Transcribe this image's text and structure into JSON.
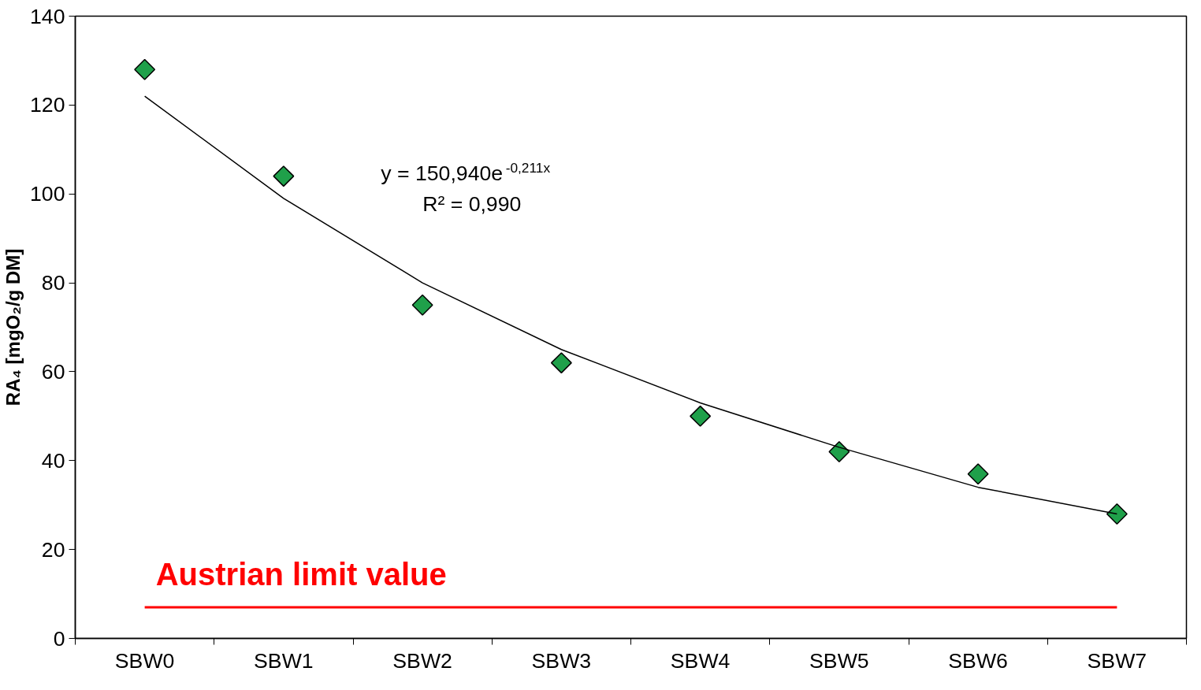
{
  "chart_data": {
    "type": "scatter",
    "ylabel": "RA₄ [mgO₂/g DM]",
    "categories": [
      "SBW0",
      "SBW1",
      "SBW2",
      "SBW3",
      "SBW4",
      "SBW5",
      "SBW6",
      "SBW7"
    ],
    "series": [
      {
        "color": "#1fa04a",
        "values": [
          128,
          104,
          75,
          62,
          50,
          42,
          37,
          28
        ],
        "marker": "diamond"
      },
      {
        "type": "line",
        "color": "#000000",
        "values": [
          122,
          99,
          80,
          65,
          53,
          43,
          34,
          28
        ],
        "line_style": "solid"
      }
    ],
    "ylim": [
      0,
      140
    ],
    "yticks": [
      0,
      20,
      40,
      60,
      80,
      100,
      120,
      140
    ],
    "grid": false,
    "ref_lines": [
      {
        "axis": "y",
        "value": 7,
        "label": "Austrian limit value",
        "color": "#ff0000"
      }
    ],
    "annotations": [
      "y = 150,940e$^{-0,211x}$",
      "R² = 0,990"
    ]
  }
}
